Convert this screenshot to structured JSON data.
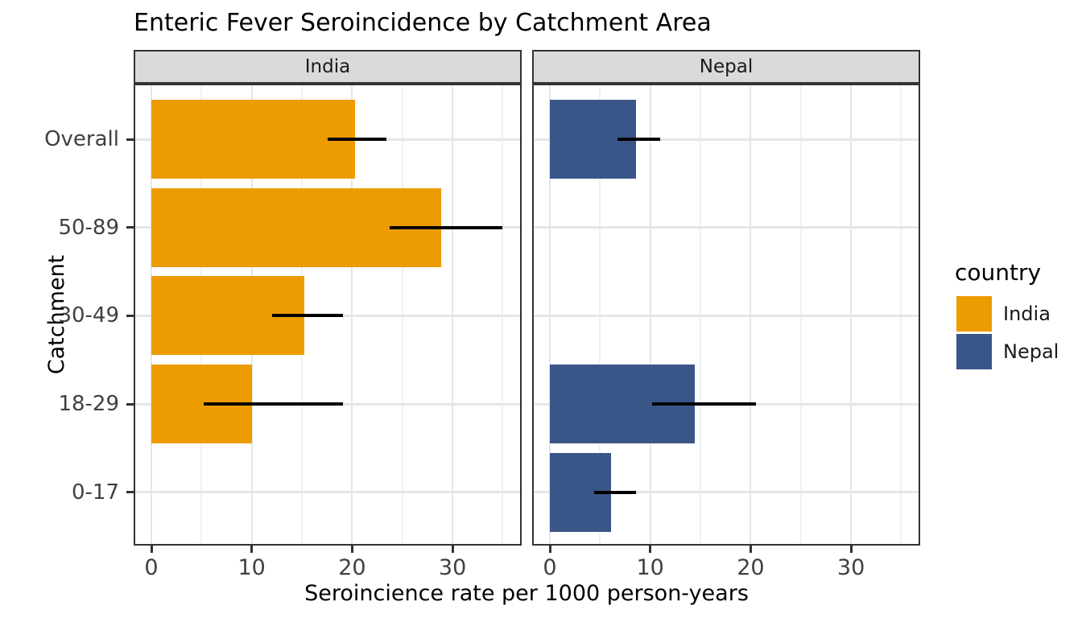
{
  "page": {
    "background": "#FFFFFF"
  },
  "chart_data": {
    "type": "bar",
    "orientation": "horizontal",
    "title": "Enteric Fever Seroincidence by Catchment Area",
    "xlabel": "Seroincience rate per 1000 person-years",
    "ylabel": "Catchment",
    "categories": [
      "Overall",
      "50-89",
      "30-49",
      "18-29",
      "0-17"
    ],
    "x_ticks": [
      0,
      10,
      20,
      30
    ],
    "x_minor_ticks": [
      5,
      15,
      25,
      35
    ],
    "xlim": [
      0,
      36.9
    ],
    "grid": true,
    "error_bars": "horizontal line ranges (95% CI), black, no caps",
    "facets": [
      {
        "label": "India",
        "color": "#EC9B00",
        "series": [
          {
            "category": "Overall",
            "value": 20.3,
            "ci_low": 17.6,
            "ci_high": 23.4
          },
          {
            "category": "50-89",
            "value": 28.9,
            "ci_low": 23.7,
            "ci_high": 35.0
          },
          {
            "category": "30-49",
            "value": 15.2,
            "ci_low": 12.0,
            "ci_high": 19.1
          },
          {
            "category": "18-29",
            "value": 10.0,
            "ci_low": 5.2,
            "ci_high": 19.1
          },
          {
            "category": "0-17",
            "value": null,
            "ci_low": null,
            "ci_high": null
          }
        ]
      },
      {
        "label": "Nepal",
        "color": "#3A5689",
        "series": [
          {
            "category": "Overall",
            "value": 8.6,
            "ci_low": 6.7,
            "ci_high": 11.0
          },
          {
            "category": "50-89",
            "value": null,
            "ci_low": null,
            "ci_high": null
          },
          {
            "category": "30-49",
            "value": null,
            "ci_low": null,
            "ci_high": null
          },
          {
            "category": "18-29",
            "value": 14.4,
            "ci_low": 10.2,
            "ci_high": 20.5
          },
          {
            "category": "0-17",
            "value": 6.1,
            "ci_low": 4.4,
            "ci_high": 8.6
          }
        ]
      }
    ],
    "legend": {
      "title": "country",
      "position": "right",
      "items": [
        {
          "label": "India",
          "color": "#EC9B00"
        },
        {
          "label": "Nepal",
          "color": "#3A5689"
        }
      ]
    },
    "style": {
      "strip_background": "#DADADA",
      "panel_border": "#333333",
      "grid_major": "#E6E6E6",
      "grid_minor": "#F1F1F1",
      "axis_text_color": "#404040",
      "errorbar_color": "#000000"
    }
  }
}
